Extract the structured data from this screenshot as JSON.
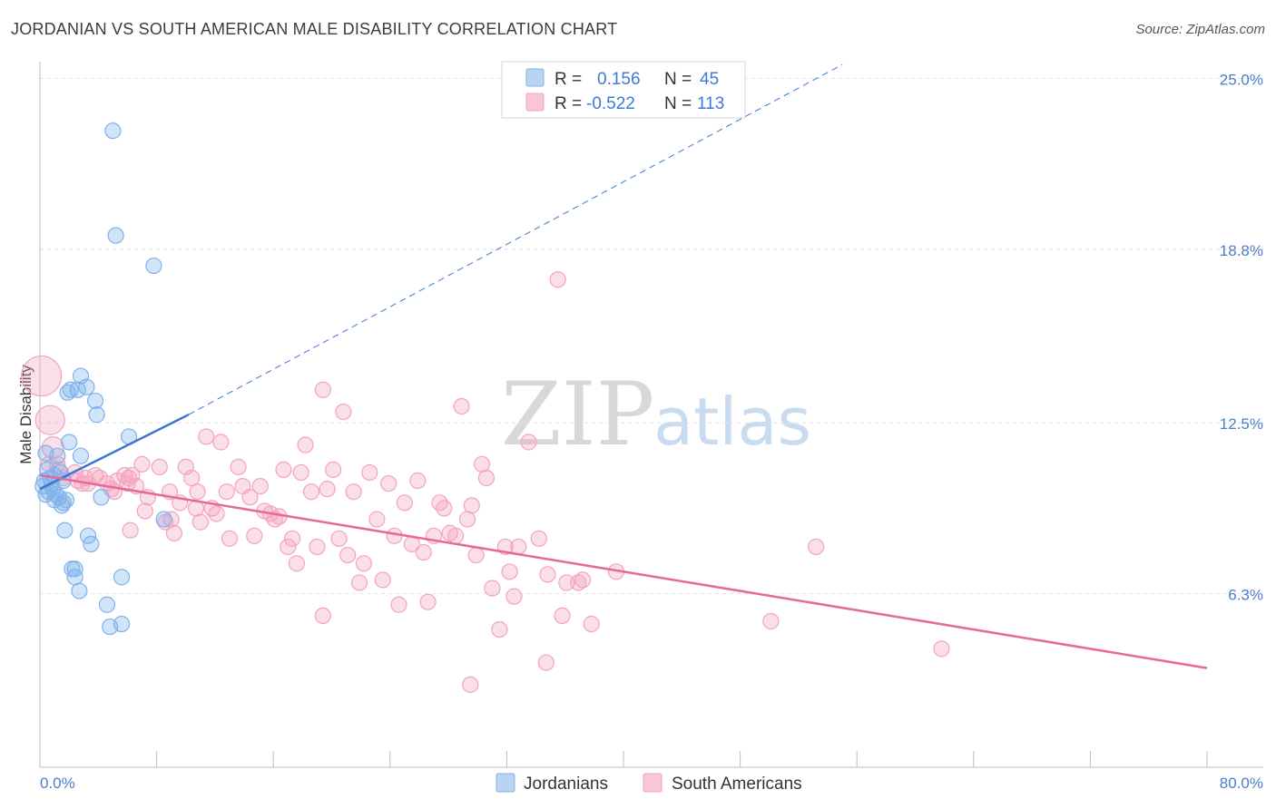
{
  "header": {
    "title": "JORDANIAN VS SOUTH AMERICAN MALE DISABILITY CORRELATION CHART",
    "source": "Source: ZipAtlas.com"
  },
  "watermark": {
    "part1": "ZIP",
    "part2": "atlas"
  },
  "colors": {
    "jordanian": "#7fb2ea",
    "jordanian_line": "#3a78d0",
    "south_american": "#f4a3bd",
    "south_american_line": "#e5699a",
    "grid": "#e2e2e2",
    "tick_label": "#4a7fc8"
  },
  "legend": {
    "rows": [
      {
        "r_label": "R =",
        "r_value": "0.156",
        "n_label": "N =",
        "n_value": "45"
      },
      {
        "r_label": "R =",
        "r_value": "-0.522",
        "n_label": "N =",
        "n_value": "113"
      }
    ]
  },
  "bottom_legend": {
    "items": [
      "Jordanians",
      "South Americans"
    ]
  },
  "chart_data": {
    "type": "scatter",
    "title": "JORDANIAN VS SOUTH AMERICAN MALE DISABILITY CORRELATION CHART",
    "xlabel": "",
    "ylabel": "Male Disability",
    "xlim": [
      0,
      80
    ],
    "ylim": [
      0,
      26.2
    ],
    "x_tick_labels": [
      "0.0%",
      "80.0%"
    ],
    "y_ticks": [
      6.3,
      12.5,
      18.8,
      25.0
    ],
    "y_tick_labels": [
      "6.3%",
      "12.5%",
      "18.8%",
      "25.0%"
    ],
    "series": [
      {
        "name": "Jordanians",
        "R": 0.156,
        "N": 45,
        "trend": {
          "solid": [
            [
              0,
              10.1
            ],
            [
              10.2,
              12.8
            ]
          ],
          "dashed": [
            [
              10.2,
              12.8
            ],
            [
              55,
              25.5
            ]
          ]
        },
        "points": [
          [
            5.0,
            23.1
          ],
          [
            5.2,
            19.3
          ],
          [
            7.8,
            18.2
          ],
          [
            2.8,
            14.2
          ],
          [
            1.9,
            13.6
          ],
          [
            2.1,
            13.7
          ],
          [
            2.6,
            13.7
          ],
          [
            3.2,
            13.8
          ],
          [
            3.8,
            13.3
          ],
          [
            3.9,
            12.8
          ],
          [
            6.1,
            12.0
          ],
          [
            0.4,
            11.4
          ],
          [
            1.2,
            11.3
          ],
          [
            2.0,
            11.8
          ],
          [
            2.8,
            11.3
          ],
          [
            0.5,
            10.8
          ],
          [
            0.7,
            10.5
          ],
          [
            1.0,
            10.6
          ],
          [
            1.4,
            10.7
          ],
          [
            0.3,
            10.4
          ],
          [
            0.8,
            10.3
          ],
          [
            1.6,
            10.4
          ],
          [
            0.4,
            9.9
          ],
          [
            0.6,
            10.0
          ],
          [
            1.0,
            9.7
          ],
          [
            1.3,
            9.8
          ],
          [
            1.6,
            9.6
          ],
          [
            1.5,
            9.5
          ],
          [
            1.8,
            9.7
          ],
          [
            4.2,
            9.8
          ],
          [
            8.5,
            9.0
          ],
          [
            1.7,
            8.6
          ],
          [
            3.3,
            8.4
          ],
          [
            3.5,
            8.1
          ],
          [
            2.2,
            7.2
          ],
          [
            2.4,
            7.2
          ],
          [
            2.4,
            6.9
          ],
          [
            5.6,
            6.9
          ],
          [
            2.7,
            6.4
          ],
          [
            4.6,
            5.9
          ],
          [
            4.8,
            5.1
          ],
          [
            5.6,
            5.2
          ],
          [
            0.2,
            10.2
          ],
          [
            0.9,
            10.1
          ],
          [
            1.1,
            9.9
          ]
        ]
      },
      {
        "name": "South Americans",
        "R": -0.522,
        "N": 113,
        "trend": {
          "solid": [
            [
              0,
              10.6
            ],
            [
              80,
              3.6
            ]
          ]
        },
        "points": [
          [
            0.1,
            14.2
          ],
          [
            0.7,
            12.6
          ],
          [
            0.9,
            11.6
          ],
          [
            1.2,
            11.0
          ],
          [
            1.3,
            10.8
          ],
          [
            1.6,
            10.5
          ],
          [
            2.4,
            10.7
          ],
          [
            2.6,
            10.4
          ],
          [
            3.1,
            10.5
          ],
          [
            3.3,
            10.3
          ],
          [
            3.8,
            10.6
          ],
          [
            4.1,
            10.5
          ],
          [
            4.6,
            10.3
          ],
          [
            4.9,
            10.1
          ],
          [
            5.3,
            10.4
          ],
          [
            5.8,
            10.6
          ],
          [
            6.1,
            10.5
          ],
          [
            6.3,
            10.6
          ],
          [
            6.6,
            10.2
          ],
          [
            7.0,
            11.0
          ],
          [
            7.4,
            9.8
          ],
          [
            8.2,
            10.9
          ],
          [
            8.9,
            10.0
          ],
          [
            5.1,
            10.0
          ],
          [
            6.0,
            10.3
          ],
          [
            6.2,
            8.6
          ],
          [
            7.2,
            9.3
          ],
          [
            8.6,
            8.9
          ],
          [
            9.0,
            9.0
          ],
          [
            9.2,
            8.5
          ],
          [
            9.6,
            9.6
          ],
          [
            10.0,
            10.9
          ],
          [
            10.4,
            10.5
          ],
          [
            10.7,
            9.4
          ],
          [
            11.0,
            8.9
          ],
          [
            10.8,
            10.0
          ],
          [
            11.4,
            12.0
          ],
          [
            11.8,
            9.4
          ],
          [
            12.1,
            9.2
          ],
          [
            12.4,
            11.8
          ],
          [
            12.8,
            10.0
          ],
          [
            13.0,
            8.3
          ],
          [
            13.6,
            10.9
          ],
          [
            13.9,
            10.2
          ],
          [
            14.4,
            9.8
          ],
          [
            14.7,
            8.4
          ],
          [
            15.1,
            10.2
          ],
          [
            15.4,
            9.3
          ],
          [
            15.8,
            9.2
          ],
          [
            16.1,
            9.0
          ],
          [
            16.4,
            9.1
          ],
          [
            16.7,
            10.8
          ],
          [
            17.0,
            8.0
          ],
          [
            17.3,
            8.3
          ],
          [
            17.6,
            7.4
          ],
          [
            17.9,
            10.7
          ],
          [
            18.2,
            11.7
          ],
          [
            18.6,
            10.0
          ],
          [
            19.0,
            8.0
          ],
          [
            19.4,
            13.7
          ],
          [
            19.7,
            10.1
          ],
          [
            20.1,
            10.8
          ],
          [
            20.5,
            8.3
          ],
          [
            20.8,
            12.9
          ],
          [
            21.1,
            7.7
          ],
          [
            21.5,
            10.0
          ],
          [
            21.9,
            6.7
          ],
          [
            22.2,
            7.4
          ],
          [
            22.6,
            10.7
          ],
          [
            23.1,
            9.0
          ],
          [
            23.5,
            6.8
          ],
          [
            23.9,
            10.3
          ],
          [
            24.3,
            8.4
          ],
          [
            24.6,
            5.9
          ],
          [
            25.0,
            9.6
          ],
          [
            25.5,
            8.1
          ],
          [
            25.9,
            10.4
          ],
          [
            26.3,
            7.8
          ],
          [
            26.6,
            6.0
          ],
          [
            27.0,
            8.4
          ],
          [
            27.4,
            9.6
          ],
          [
            27.7,
            9.4
          ],
          [
            28.1,
            8.5
          ],
          [
            28.5,
            8.4
          ],
          [
            28.9,
            13.1
          ],
          [
            29.3,
            9.0
          ],
          [
            29.6,
            9.5
          ],
          [
            29.9,
            7.7
          ],
          [
            30.3,
            11.0
          ],
          [
            30.6,
            10.5
          ],
          [
            31.0,
            6.5
          ],
          [
            31.5,
            5.0
          ],
          [
            31.9,
            8.0
          ],
          [
            32.2,
            7.1
          ],
          [
            32.5,
            6.2
          ],
          [
            32.8,
            8.0
          ],
          [
            33.5,
            11.8
          ],
          [
            34.2,
            8.3
          ],
          [
            34.8,
            7.0
          ],
          [
            35.5,
            17.7
          ],
          [
            35.8,
            5.5
          ],
          [
            36.1,
            6.7
          ],
          [
            37.2,
            6.8
          ],
          [
            36.9,
            6.7
          ],
          [
            37.8,
            5.2
          ],
          [
            39.5,
            7.1
          ],
          [
            34.7,
            3.8
          ],
          [
            29.5,
            3.0
          ],
          [
            53.2,
            8.0
          ],
          [
            50.1,
            5.3
          ],
          [
            61.8,
            4.3
          ],
          [
            19.4,
            5.5
          ],
          [
            0.6,
            11.0
          ],
          [
            2.9,
            10.3
          ]
        ]
      }
    ]
  },
  "axes": {
    "y_axis_title": "Male Disability"
  }
}
